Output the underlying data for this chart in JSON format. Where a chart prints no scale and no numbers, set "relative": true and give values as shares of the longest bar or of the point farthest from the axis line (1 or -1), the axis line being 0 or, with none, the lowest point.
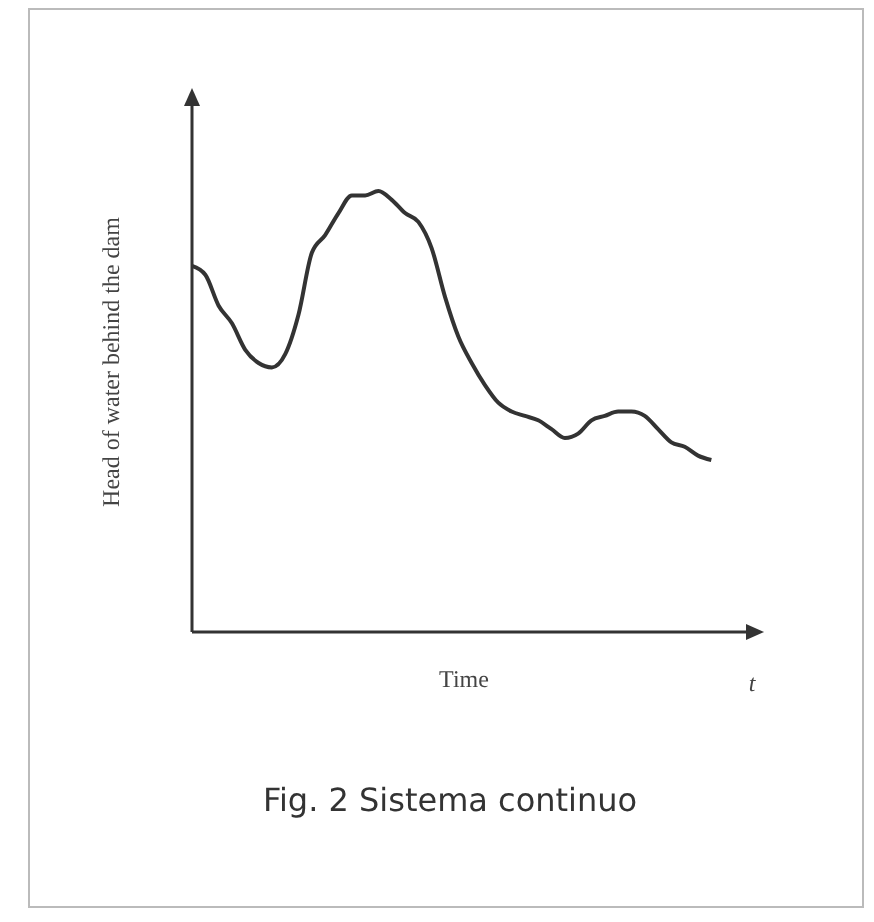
{
  "chart_data": {
    "type": "line",
    "relative": true,
    "xlabel": "Time",
    "ylabel": "Head of water behind the dam",
    "annotations": [
      "t",
      "Fig. 2 Sistema continuo"
    ],
    "color": "#333333",
    "marker": "none",
    "categories": [
      null,
      null,
      null,
      null,
      null,
      null,
      null,
      null,
      null,
      null,
      null,
      null,
      null,
      null,
      null,
      null,
      null,
      null,
      null,
      null,
      null,
      null,
      null,
      null,
      null,
      null,
      null,
      null,
      null,
      null,
      null,
      null,
      null,
      null,
      null,
      null,
      null,
      null,
      null,
      null
    ],
    "values": [
      0.83,
      0.81,
      0.74,
      0.7,
      0.64,
      0.61,
      0.6,
      0.63,
      0.72,
      0.86,
      0.9,
      0.95,
      0.99,
      0.99,
      1.0,
      0.98,
      0.95,
      0.93,
      0.87,
      0.76,
      0.67,
      0.61,
      0.56,
      0.52,
      0.5,
      0.49,
      0.48,
      0.46,
      0.44,
      0.45,
      0.48,
      0.49,
      0.5,
      0.5,
      0.49,
      0.46,
      0.43,
      0.42,
      0.4,
      0.39
    ]
  }
}
